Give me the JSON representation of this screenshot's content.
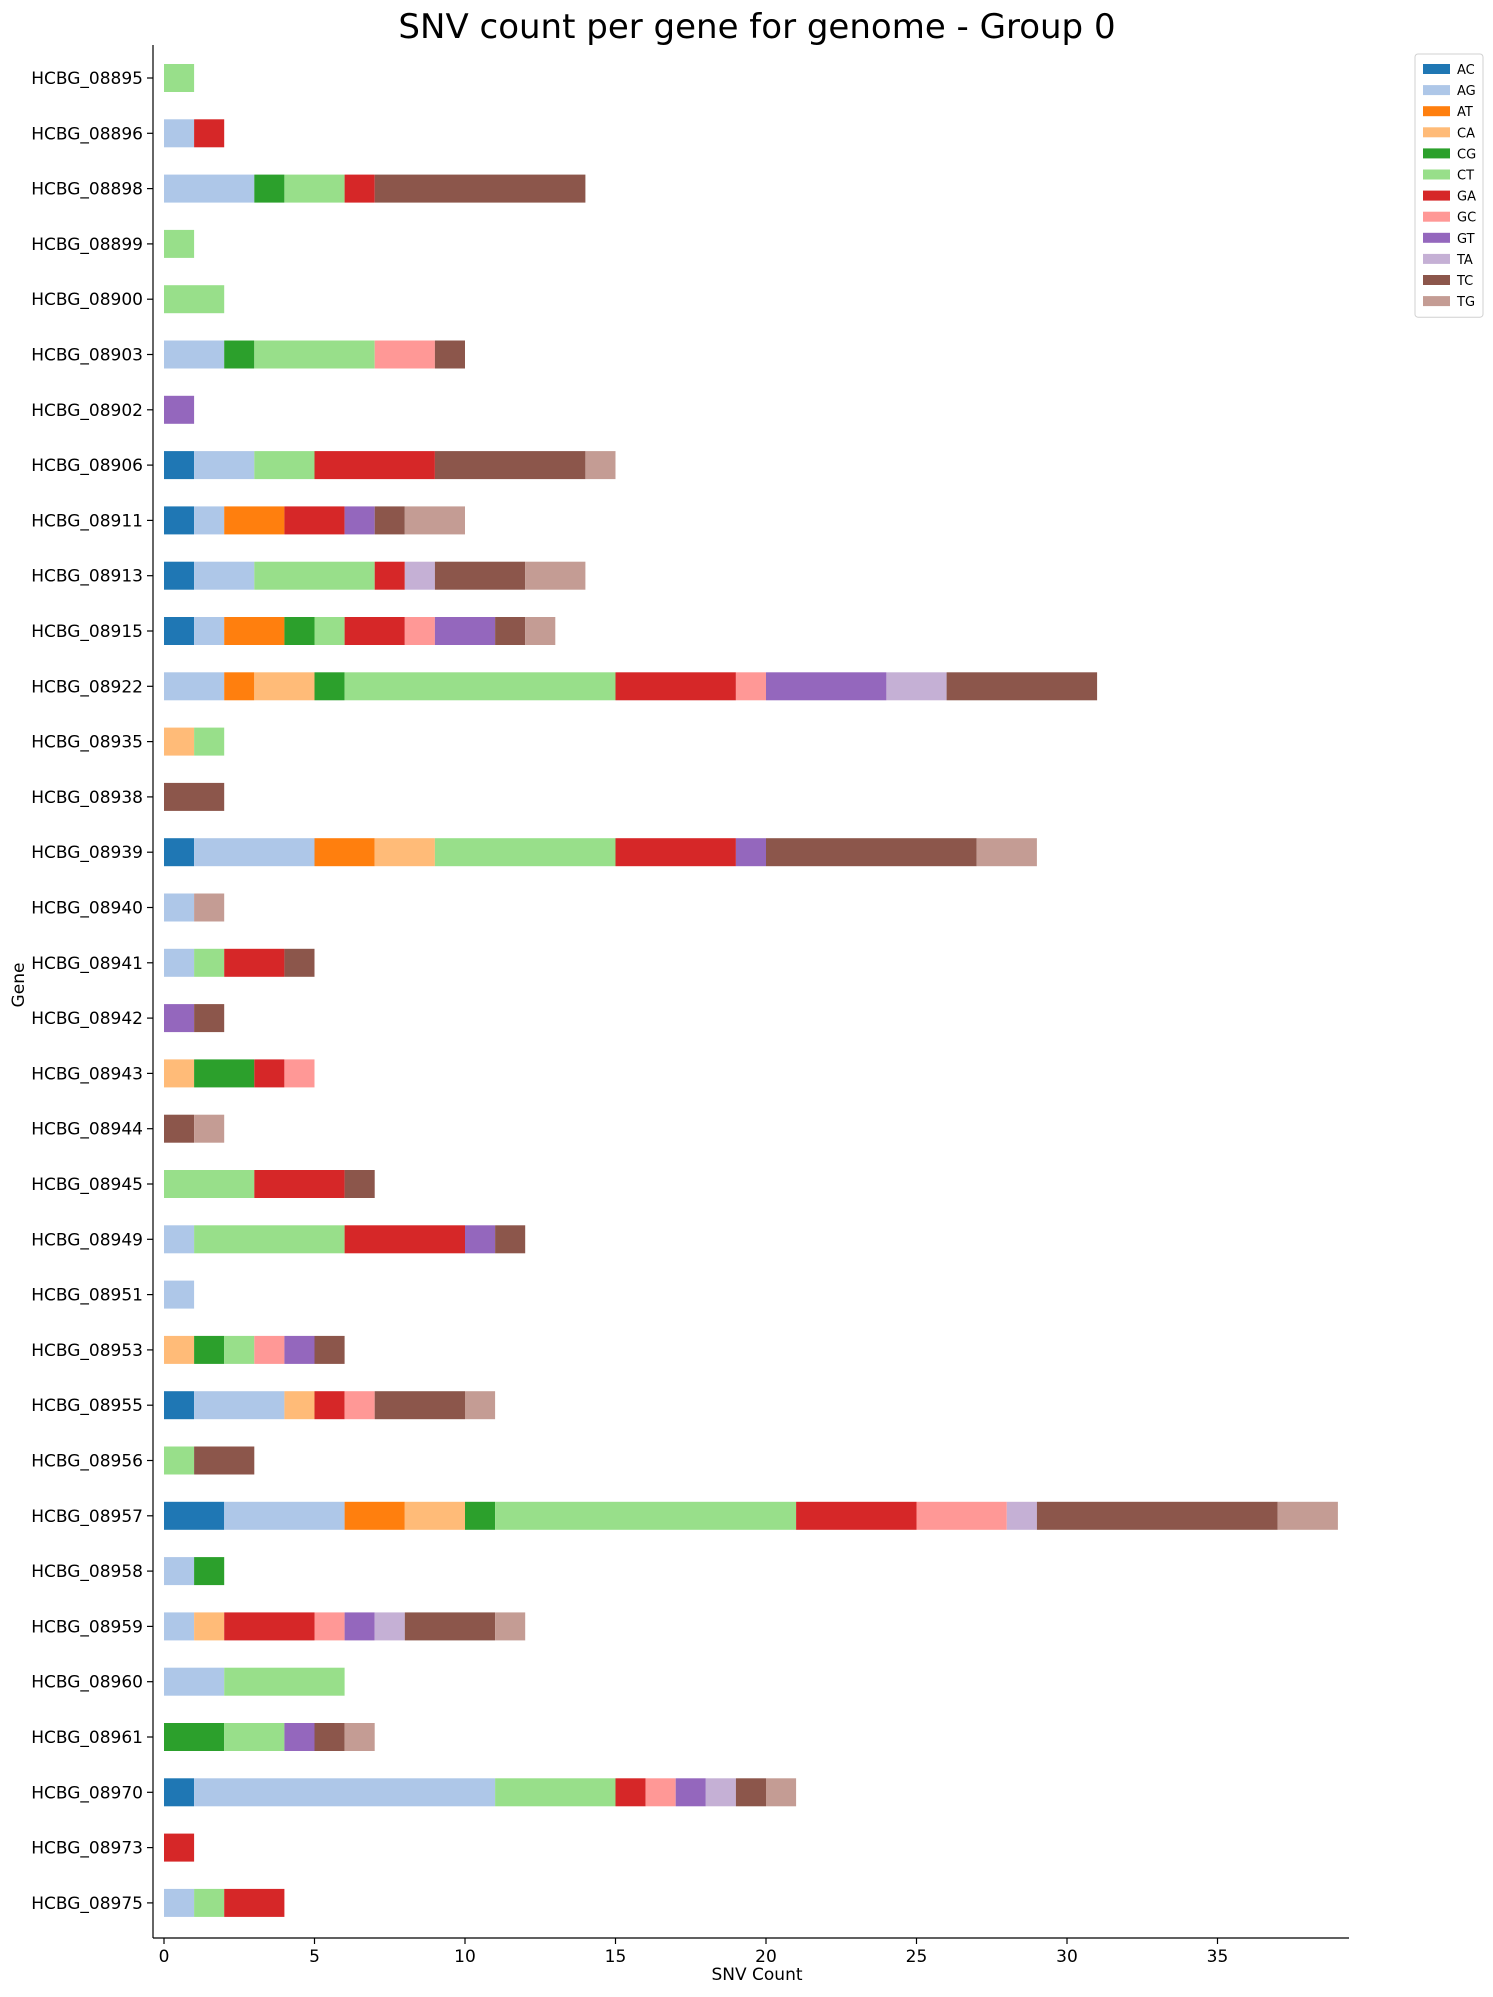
{
  "chart_data": {
    "type": "bar",
    "orientation": "horizontal",
    "stacked": true,
    "title": "SNV count per gene for genome - Group 0",
    "xlabel": "SNV Count",
    "ylabel": "Gene",
    "xlim": [
      0,
      39.5
    ],
    "xticks": [
      0,
      5,
      10,
      15,
      20,
      25,
      30,
      35
    ],
    "grid": false,
    "legend_position": "top-right",
    "categories": [
      "HCBG_08895",
      "HCBG_08896",
      "HCBG_08898",
      "HCBG_08899",
      "HCBG_08900",
      "HCBG_08903",
      "HCBG_08902",
      "HCBG_08906",
      "HCBG_08911",
      "HCBG_08913",
      "HCBG_08915",
      "HCBG_08922",
      "HCBG_08935",
      "HCBG_08938",
      "HCBG_08939",
      "HCBG_08940",
      "HCBG_08941",
      "HCBG_08942",
      "HCBG_08943",
      "HCBG_08944",
      "HCBG_08945",
      "HCBG_08949",
      "HCBG_08951",
      "HCBG_08953",
      "HCBG_08955",
      "HCBG_08956",
      "HCBG_08957",
      "HCBG_08958",
      "HCBG_08959",
      "HCBG_08960",
      "HCBG_08961",
      "HCBG_08970",
      "HCBG_08973",
      "HCBG_08975"
    ],
    "series": [
      {
        "name": "AC",
        "color": "#1f77b4",
        "values": [
          0,
          0,
          0,
          0,
          0,
          0,
          0,
          1,
          1,
          1,
          1,
          0,
          0,
          0,
          1,
          0,
          0,
          0,
          0,
          0,
          0,
          0,
          0,
          0,
          1,
          0,
          2,
          0,
          0,
          0,
          0,
          1,
          0,
          0
        ]
      },
      {
        "name": "AG",
        "color": "#aec7e8",
        "values": [
          0,
          1,
          3,
          0,
          0,
          2,
          0,
          2,
          1,
          2,
          1,
          2,
          0,
          0,
          4,
          1,
          1,
          0,
          0,
          0,
          0,
          1,
          1,
          0,
          3,
          0,
          4,
          1,
          1,
          2,
          0,
          10,
          0,
          1
        ]
      },
      {
        "name": "AT",
        "color": "#ff7f0e",
        "values": [
          0,
          0,
          0,
          0,
          0,
          0,
          0,
          0,
          2,
          0,
          2,
          1,
          0,
          0,
          2,
          0,
          0,
          0,
          0,
          0,
          0,
          0,
          0,
          0,
          0,
          0,
          2,
          0,
          0,
          0,
          0,
          0,
          0,
          0
        ]
      },
      {
        "name": "CA",
        "color": "#ffbb78",
        "values": [
          0,
          0,
          0,
          0,
          0,
          0,
          0,
          0,
          0,
          0,
          0,
          2,
          1,
          0,
          2,
          0,
          0,
          0,
          1,
          0,
          0,
          0,
          0,
          1,
          1,
          0,
          2,
          0,
          1,
          0,
          0,
          0,
          0,
          0
        ]
      },
      {
        "name": "CG",
        "color": "#2ca02c",
        "values": [
          0,
          0,
          1,
          0,
          0,
          1,
          0,
          0,
          0,
          0,
          1,
          1,
          0,
          0,
          0,
          0,
          0,
          0,
          2,
          0,
          0,
          0,
          0,
          1,
          0,
          0,
          1,
          1,
          0,
          0,
          2,
          0,
          0,
          0
        ]
      },
      {
        "name": "CT",
        "color": "#98df8a",
        "values": [
          1,
          0,
          2,
          1,
          2,
          4,
          0,
          2,
          0,
          4,
          1,
          9,
          1,
          0,
          6,
          0,
          1,
          0,
          0,
          0,
          3,
          5,
          0,
          1,
          0,
          1,
          10,
          0,
          0,
          4,
          2,
          4,
          0,
          1
        ]
      },
      {
        "name": "GA",
        "color": "#d62728",
        "values": [
          0,
          1,
          1,
          0,
          0,
          0,
          0,
          4,
          2,
          1,
          2,
          4,
          0,
          0,
          4,
          0,
          2,
          0,
          1,
          0,
          3,
          4,
          0,
          0,
          1,
          0,
          4,
          0,
          3,
          0,
          0,
          1,
          1,
          2
        ]
      },
      {
        "name": "GC",
        "color": "#ff9896",
        "values": [
          0,
          0,
          0,
          0,
          0,
          2,
          0,
          0,
          0,
          0,
          1,
          1,
          0,
          0,
          0,
          0,
          0,
          0,
          1,
          0,
          0,
          0,
          0,
          1,
          1,
          0,
          3,
          0,
          1,
          0,
          0,
          1,
          0,
          0
        ]
      },
      {
        "name": "GT",
        "color": "#9467bd",
        "values": [
          0,
          0,
          0,
          0,
          0,
          0,
          1,
          0,
          1,
          0,
          2,
          4,
          0,
          0,
          1,
          0,
          0,
          1,
          0,
          0,
          0,
          1,
          0,
          1,
          0,
          0,
          0,
          0,
          1,
          0,
          1,
          1,
          0,
          0
        ]
      },
      {
        "name": "TA",
        "color": "#c5b0d5",
        "values": [
          0,
          0,
          0,
          0,
          0,
          0,
          0,
          0,
          0,
          1,
          0,
          2,
          0,
          0,
          0,
          0,
          0,
          0,
          0,
          0,
          0,
          0,
          0,
          0,
          0,
          0,
          1,
          0,
          1,
          0,
          0,
          1,
          0,
          0
        ]
      },
      {
        "name": "TC",
        "color": "#8c564b",
        "values": [
          0,
          0,
          7,
          0,
          0,
          1,
          0,
          5,
          1,
          3,
          1,
          5,
          0,
          2,
          7,
          0,
          1,
          1,
          0,
          1,
          1,
          1,
          0,
          1,
          3,
          2,
          8,
          0,
          3,
          0,
          1,
          1,
          0,
          0
        ]
      },
      {
        "name": "TG",
        "color": "#c49c94",
        "values": [
          0,
          0,
          0,
          0,
          0,
          0,
          0,
          1,
          2,
          2,
          1,
          0,
          0,
          0,
          2,
          1,
          0,
          0,
          0,
          1,
          0,
          0,
          0,
          0,
          1,
          0,
          2,
          0,
          1,
          0,
          1,
          1,
          0,
          0
        ]
      }
    ]
  }
}
